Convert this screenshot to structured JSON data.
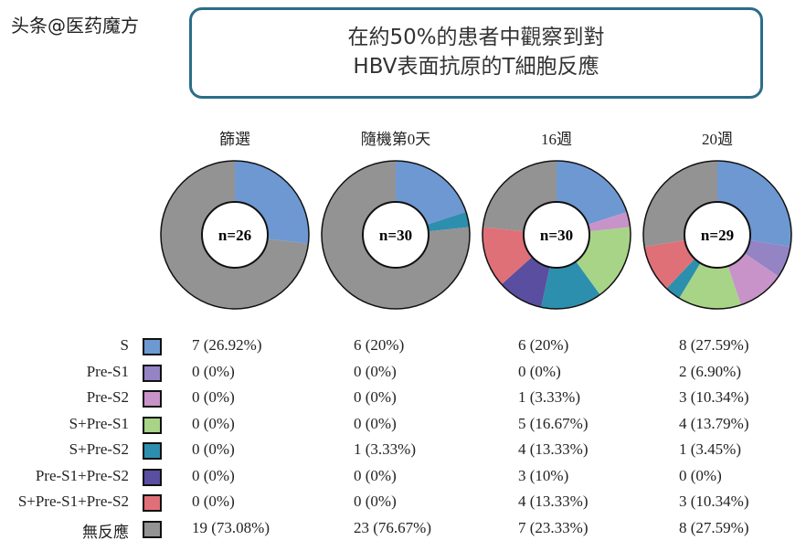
{
  "title": {
    "line1": "在約50%的患者中觀察到對",
    "line2": "HBV表面抗原的T細胞反應"
  },
  "chart_data": {
    "type": "pie",
    "variant": "donut",
    "categories": [
      "S",
      "Pre-S1",
      "Pre-S2",
      "S+Pre-S1",
      "S+Pre-S2",
      "Pre-S1+Pre-S2",
      "S+Pre-S1+Pre-S2",
      "無反應"
    ],
    "colors": [
      "#6e98d2",
      "#9484c4",
      "#c893c8",
      "#a8d487",
      "#2d8fae",
      "#5a4ea0",
      "#e07078",
      "#939393"
    ],
    "series": [
      {
        "name": "篩選",
        "n_label": "n=26",
        "values": [
          7,
          0,
          0,
          0,
          0,
          0,
          0,
          19
        ],
        "labels": [
          "7 (26.92%)",
          "0 (0%)",
          "0 (0%)",
          "0 (0%)",
          "0 (0%)",
          "0 (0%)",
          "0 (0%)",
          "19 (73.08%)"
        ]
      },
      {
        "name": "隨機第0天",
        "n_label": "n=30",
        "values": [
          6,
          0,
          0,
          0,
          1,
          0,
          0,
          23
        ],
        "labels": [
          "6 (20%)",
          "0 (0%)",
          "0 (0%)",
          "0 (0%)",
          "1 (3.33%)",
          "0 (0%)",
          "0 (0%)",
          "23 (76.67%)"
        ]
      },
      {
        "name": "16週",
        "n_label": "n=30",
        "values": [
          6,
          0,
          1,
          5,
          4,
          3,
          4,
          7
        ],
        "labels": [
          "6 (20%)",
          "0 (0%)",
          "1 (3.33%)",
          "5 (16.67%)",
          "4 (13.33%)",
          "3 (10%)",
          "4 (13.33%)",
          "7 (23.33%)"
        ]
      },
      {
        "name": "20週",
        "n_label": "n=29",
        "values": [
          8,
          2,
          3,
          4,
          1,
          0,
          3,
          8
        ],
        "labels": [
          "8 (27.59%)",
          "2 (6.90%)",
          "3 (10.34%)",
          "4 (13.79%)",
          "1 (3.45%)",
          "0 (0%)",
          "3 (10.34%)",
          "8 (27.59%)"
        ]
      }
    ]
  },
  "watermark": "头条@医药魔方"
}
